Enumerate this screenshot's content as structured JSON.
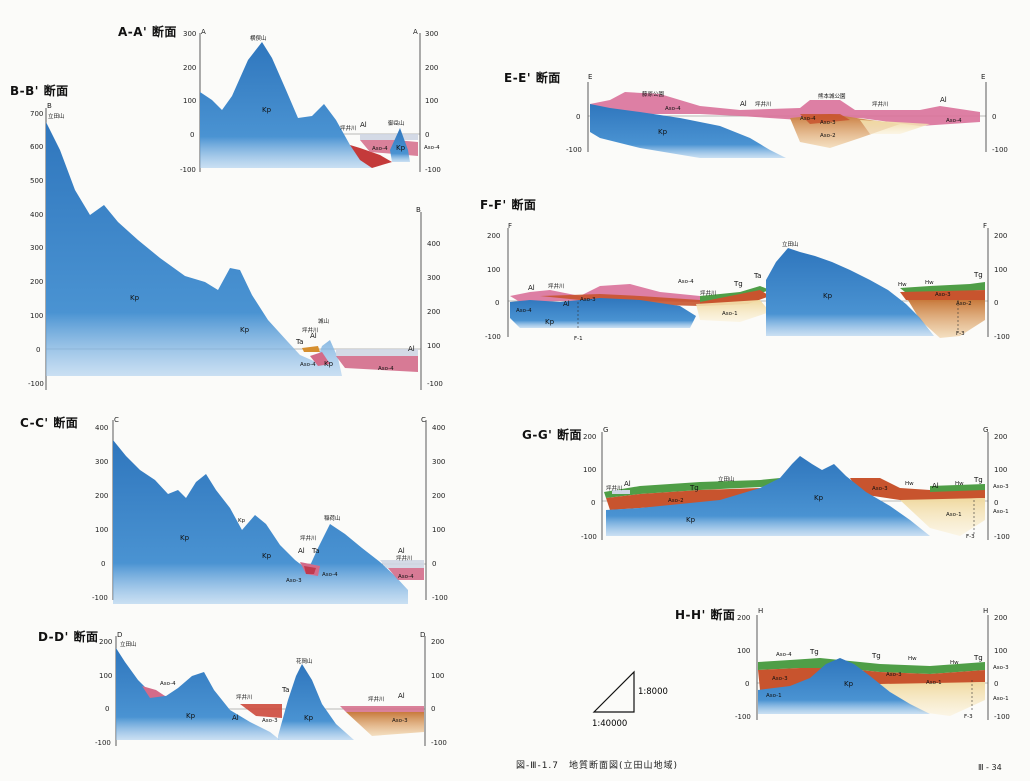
{
  "caption": "図-Ⅲ-1.7　地質断面図(立田山地域)",
  "page_number": "Ⅲ - 34",
  "scale": {
    "vertical": "1:8000",
    "horizontal": "1:40000"
  },
  "colors": {
    "kp": "#3e86c8",
    "aso4": "#d06080",
    "aso3": "#c8542e",
    "aso2": "#d89a55",
    "aso1": "#f2dca0",
    "tg": "#4f9e47",
    "al": "#c8cdd8"
  },
  "sections": [
    {
      "id": "AA",
      "title": "A-A' 断面",
      "left_mark": "A",
      "right_mark": "A",
      "left_ticks": [
        "300",
        "200",
        "100",
        "0",
        "-100"
      ],
      "right_ticks": [
        "300",
        "200",
        "100",
        "0",
        "-100"
      ],
      "labels": [
        "横俣山",
        "Kp",
        "御岳山",
        "坪井川",
        "Al",
        "Aso-4",
        "Aso-4",
        "Kp"
      ]
    },
    {
      "id": "BB",
      "title": "B-B' 断面",
      "left_mark": "B",
      "right_mark": "B",
      "left_ticks": [
        "700",
        "600",
        "500",
        "400",
        "300",
        "200",
        "100",
        "0",
        "-100"
      ],
      "right_ticks": [
        "400",
        "300",
        "200",
        "100",
        "0",
        "-100"
      ],
      "labels": [
        "立田山",
        "Kp",
        "Kp",
        "坪井川",
        "城山",
        "Ta",
        "Al",
        "Aso-4",
        "Kp",
        "Al",
        "Aso-4"
      ]
    },
    {
      "id": "CC",
      "title": "C-C' 断面",
      "left_mark": "C",
      "right_mark": "C",
      "left_ticks": [
        "400",
        "300",
        "200",
        "100",
        "0",
        "-100"
      ],
      "right_ticks": [
        "400",
        "300",
        "200",
        "100",
        "0",
        "-100"
      ],
      "labels": [
        "Kp",
        "Kp",
        "Kp",
        "坪井川",
        "Al",
        "Ta",
        "Aso-3",
        "Aso-4",
        "稲荷山",
        "Al",
        "坪井川",
        "Aso-4"
      ]
    },
    {
      "id": "DD",
      "title": "D-D' 断面",
      "left_mark": "D",
      "right_mark": "D",
      "left_ticks": [
        "200",
        "100",
        "0",
        "-100"
      ],
      "right_ticks": [
        "200",
        "100",
        "0",
        "-100"
      ],
      "labels": [
        "立田山",
        "Aso-4",
        "Kp",
        "Al",
        "坪井川",
        "Ta",
        "Aso-3",
        "花岡山",
        "Kp",
        "坪井川",
        "Al",
        "Aso-3"
      ]
    },
    {
      "id": "EE",
      "title": "E-E' 断面",
      "left_mark": "E",
      "right_mark": "E",
      "left_ticks": [
        "0",
        "-100"
      ],
      "right_ticks": [
        "0",
        "-100"
      ],
      "labels": [
        "藤原公園",
        "Aso-4",
        "Al",
        "坪井川",
        "Kp",
        "熊本城公園",
        "Aso-4",
        "Aso-3",
        "Aso-2",
        "坪井川",
        "Al",
        "Aso-4"
      ]
    },
    {
      "id": "FF",
      "title": "F-F' 断面",
      "left_mark": "F",
      "right_mark": "F",
      "left_ticks": [
        "200",
        "100",
        "0",
        "-100"
      ],
      "right_ticks": [
        "200",
        "100",
        "0",
        "-100"
      ],
      "labels": [
        "Al",
        "坪井川",
        "Aso-4",
        "Kp",
        "Al",
        "Aso-3",
        "Aso-4",
        "坪井川",
        "Tg",
        "Ta",
        "Aso-1",
        "立田山",
        "Kp",
        "Hw",
        "Hw",
        "Aso-3",
        "Aso-2",
        "Tg",
        "F-1",
        "F-3"
      ]
    },
    {
      "id": "GG",
      "title": "G-G' 断面",
      "left_mark": "G",
      "right_mark": "G",
      "left_ticks": [
        "200",
        "100",
        "0",
        "-100"
      ],
      "right_ticks": [
        "200",
        "100",
        "0",
        "-100"
      ],
      "labels": [
        "坪井川",
        "Al",
        "Tg",
        "Aso-2",
        "Kp",
        "立田山",
        "Kp",
        "Aso-3",
        "Hw",
        "Al",
        "Hw",
        "Tg",
        "Aso-1",
        "Aso-3",
        "Aso-1",
        "F-3"
      ]
    },
    {
      "id": "HH",
      "title": "H-H' 断面",
      "left_mark": "H",
      "right_mark": "H",
      "left_ticks": [
        "200",
        "100",
        "0",
        "-100"
      ],
      "right_ticks": [
        "200",
        "100",
        "0",
        "-100"
      ],
      "labels": [
        "Aso-4",
        "Tg",
        "Tg",
        "Hw",
        "Hw",
        "Tg",
        "Aso-3",
        "Aso-1",
        "Kp",
        "Aso-3",
        "Aso-1",
        "Aso-3",
        "Aso-1",
        "F-3"
      ]
    }
  ]
}
